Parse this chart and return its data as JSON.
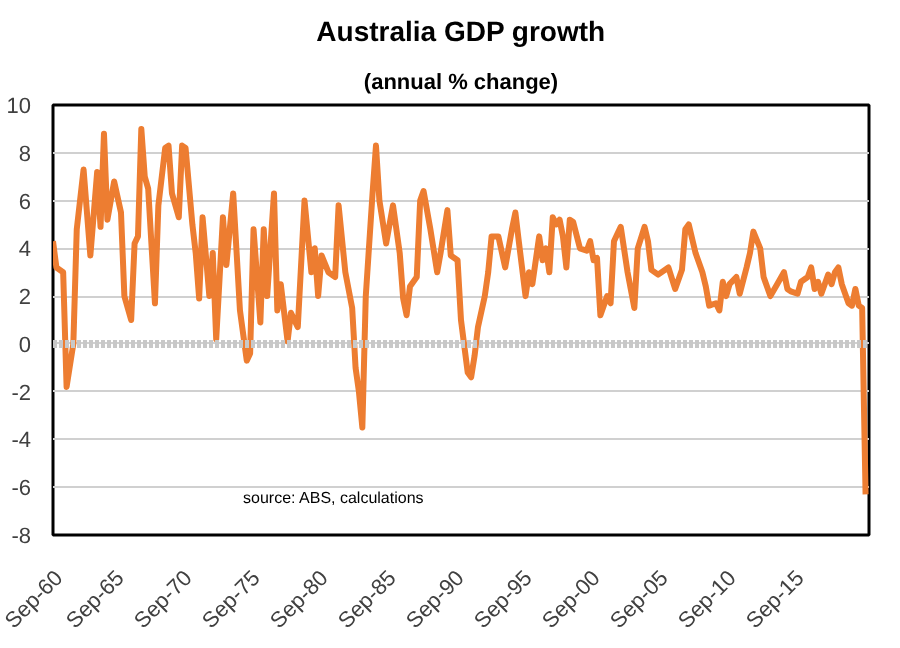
{
  "chart_data": {
    "type": "line",
    "title": "Australia GDP growth",
    "subtitle": "(annual % change)",
    "annotations": [
      "source:  ABS,  calculations"
    ],
    "x": [
      "1960-09",
      "1960-12",
      "1961-06",
      "1961-09",
      "1962-03",
      "1962-06",
      "1962-12",
      "1963-06",
      "1963-12",
      "1964-03",
      "1964-06",
      "1964-09",
      "1965-03",
      "1965-09",
      "1965-12",
      "1966-06",
      "1966-09",
      "1966-12",
      "1967-03",
      "1967-06",
      "1967-09",
      "1968-03",
      "1968-06",
      "1968-12",
      "1969-03",
      "1969-06",
      "1969-12",
      "1970-03",
      "1970-06",
      "1970-12",
      "1971-03",
      "1971-06",
      "1971-09",
      "1972-03",
      "1972-06",
      "1972-09",
      "1973-03",
      "1973-06",
      "1973-12",
      "1974-06",
      "1974-12",
      "1975-03",
      "1975-06",
      "1975-12",
      "1976-03",
      "1976-06",
      "1976-12",
      "1977-03",
      "1977-06",
      "1977-12",
      "1978-03",
      "1978-09",
      "1979-03",
      "1979-09",
      "1979-12",
      "1980-03",
      "1980-06",
      "1980-12",
      "1981-06",
      "1981-09",
      "1982-03",
      "1982-09",
      "1982-12",
      "1983-03",
      "1983-06",
      "1983-09",
      "1984-03",
      "1984-06",
      "1984-09",
      "1985-03",
      "1985-09",
      "1986-03",
      "1986-06",
      "1986-09",
      "1986-12",
      "1987-06",
      "1987-09",
      "1987-12",
      "1988-06",
      "1988-12",
      "1989-03",
      "1989-09",
      "1989-12",
      "1990-06",
      "1990-09",
      "1991-03",
      "1991-06",
      "1991-09",
      "1991-12",
      "1992-06",
      "1992-09",
      "1992-12",
      "1993-06",
      "1993-12",
      "1994-06",
      "1994-09",
      "1994-12",
      "1995-06",
      "1995-09",
      "1995-12",
      "1996-06",
      "1996-09",
      "1996-12",
      "1997-03",
      "1997-06",
      "1997-09",
      "1997-12",
      "1998-03",
      "1998-06",
      "1998-09",
      "1998-12",
      "1999-06",
      "1999-12",
      "2000-03",
      "2000-06",
      "2000-09",
      "2000-12",
      "2001-06",
      "2001-09",
      "2001-12",
      "2002-03",
      "2002-06",
      "2002-12",
      "2003-06",
      "2003-09",
      "2004-03",
      "2004-06",
      "2004-09",
      "2005-03",
      "2005-12",
      "2006-06",
      "2006-12",
      "2007-03",
      "2007-06",
      "2007-12",
      "2008-06",
      "2008-09",
      "2008-12",
      "2009-06",
      "2009-09",
      "2009-12",
      "2010-03",
      "2010-06",
      "2010-12",
      "2011-03",
      "2011-09",
      "2011-12",
      "2012-03",
      "2012-09",
      "2012-12",
      "2013-06",
      "2013-12",
      "2014-06",
      "2014-09",
      "2014-12",
      "2015-06",
      "2015-09",
      "2016-03",
      "2016-06",
      "2016-09",
      "2016-12",
      "2017-03",
      "2017-09",
      "2017-12",
      "2018-03",
      "2018-06",
      "2018-09",
      "2019-03",
      "2019-06",
      "2019-09",
      "2019-12",
      "2020-03",
      "2020-06"
    ],
    "series": [
      {
        "color": "#ed7d31",
        "values": [
          4.3,
          3.2,
          3.0,
          -1.8,
          0,
          4.8,
          7.3,
          3.7,
          7.2,
          4.9,
          8.8,
          5.2,
          6.8,
          5.5,
          2.0,
          1.0,
          4.2,
          4.5,
          9.0,
          7.0,
          6.5,
          1.7,
          5.8,
          8.2,
          8.3,
          6.3,
          5.3,
          8.3,
          8.2,
          5.0,
          3.8,
          1.9,
          5.3,
          2.0,
          3.8,
          0.2,
          5.3,
          3.3,
          6.3,
          1.4,
          -0.7,
          -0.4,
          4.8,
          0.9,
          4.8,
          2.0,
          6.3,
          1.4,
          2.5,
          0.1,
          1.3,
          0.7,
          6.0,
          3.0,
          4.0,
          2.0,
          3.7,
          3.0,
          2.8,
          5.8,
          3.0,
          1.5,
          -1.0,
          -2.0,
          -3.5,
          2.0,
          6.3,
          8.3,
          6.0,
          4.2,
          5.8,
          3.8,
          1.9,
          1.2,
          2.4,
          2.8,
          6.0,
          6.4,
          4.8,
          3.0,
          3.8,
          5.6,
          3.7,
          3.5,
          1.0,
          -1.2,
          -1.4,
          -0.5,
          0.7,
          2.0,
          3.0,
          4.5,
          4.5,
          3.2,
          4.8,
          5.5,
          4.3,
          2.0,
          3.0,
          2.5,
          4.5,
          3.5,
          4.0,
          3.0,
          5.3,
          5.0,
          5.2,
          4.5,
          3.2,
          5.2,
          5.1,
          4.0,
          3.9,
          4.3,
          3.5,
          3.6,
          1.2,
          2.0,
          1.7,
          4.3,
          4.6,
          4.9,
          3.0,
          1.5,
          4.0,
          4.9,
          4.3,
          3.1,
          2.9,
          3.2,
          2.3,
          3.1,
          4.8,
          5.0,
          3.8,
          3.0,
          2.4,
          1.6,
          1.7,
          1.4,
          2.6,
          2.0,
          2.5,
          2.8,
          2.1,
          3.2,
          3.8,
          4.7,
          4.0,
          2.8,
          2.0,
          2.5,
          3.0,
          2.3,
          2.2,
          2.1,
          2.6,
          2.8,
          3.2,
          2.3,
          2.6,
          2.1,
          2.9,
          2.5,
          3.0,
          3.2,
          2.5,
          1.7,
          1.6,
          2.3,
          1.6,
          1.5,
          -6.3
        ]
      }
    ],
    "xlim": [
      "1960-09",
      "2020-09"
    ],
    "xticks": [
      {
        "value": "1960-09",
        "label": "Sep-60"
      },
      {
        "value": "1965-09",
        "label": "Sep-65"
      },
      {
        "value": "1970-09",
        "label": "Sep-70"
      },
      {
        "value": "1975-09",
        "label": "Sep-75"
      },
      {
        "value": "1980-09",
        "label": "Sep-80"
      },
      {
        "value": "1985-09",
        "label": "Sep-85"
      },
      {
        "value": "1990-09",
        "label": "Sep-90"
      },
      {
        "value": "1995-09",
        "label": "Sep-95"
      },
      {
        "value": "2000-09",
        "label": "Sep-00"
      },
      {
        "value": "2005-09",
        "label": "Sep-05"
      },
      {
        "value": "2010-09",
        "label": "Sep-10"
      },
      {
        "value": "2015-09",
        "label": "Sep-15"
      }
    ],
    "ylim": [
      -8,
      10
    ],
    "yticks": [
      -8,
      -6,
      -4,
      -2,
      0,
      2,
      4,
      6,
      8,
      10
    ],
    "ref_lines": [
      {
        "axis": "y",
        "value": 0,
        "color": "#c8c8c8",
        "line_style": "dotted"
      }
    ],
    "grid": "y",
    "marker": "none",
    "line_style": "solid"
  }
}
